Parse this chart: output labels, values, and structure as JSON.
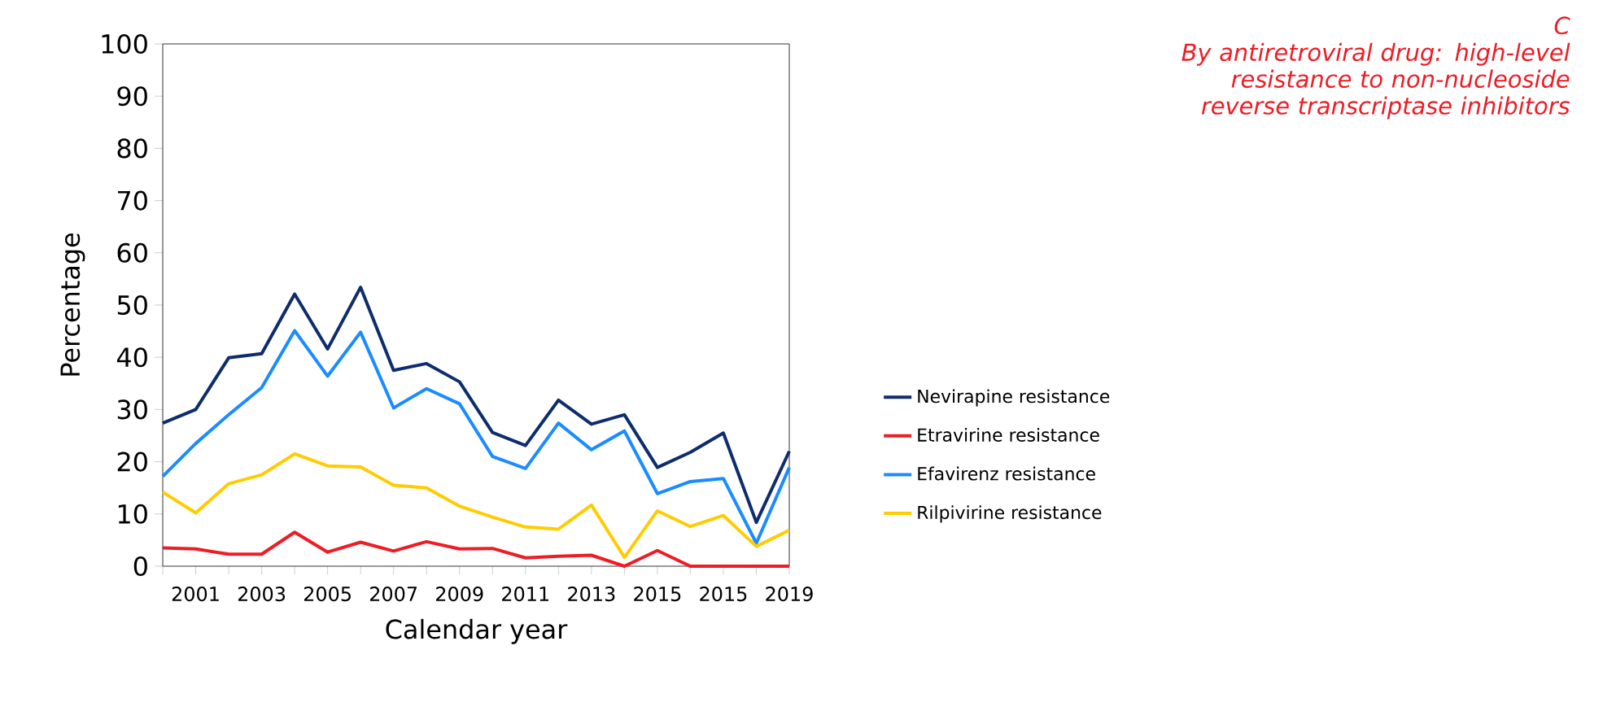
{
  "chart_data": {
    "type": "line",
    "title": "C",
    "subtitle": "By antiretroviral drug: high-level resistance to non-nucleoside reverse transcriptase inhibitors",
    "xlabel": "Calendar year",
    "ylabel": "Percentage",
    "categories": [
      null,
      "2001",
      null,
      "2003",
      null,
      "2005",
      null,
      "2007",
      null,
      "2009",
      null,
      "2011",
      null,
      "2013",
      null,
      "2015",
      null,
      "2015",
      null,
      "2019"
    ],
    "ylim": [
      0,
      100
    ],
    "yticks": [
      0,
      10,
      20,
      30,
      40,
      50,
      60,
      70,
      80,
      90,
      100
    ],
    "grid": false,
    "legend": "right",
    "marker": "none",
    "line_style": "solid",
    "series": [
      {
        "name": "Nevirapine resistance",
        "color": "#0d2d6c",
        "values": [
          27.4,
          30.0,
          39.9,
          40.7,
          52.1,
          41.6,
          53.4,
          37.5,
          38.8,
          35.3,
          25.6,
          23.1,
          31.8,
          27.2,
          29.0,
          18.9,
          21.8,
          25.5,
          8.4,
          22.0
        ]
      },
      {
        "name": "Etravirine resistance",
        "color": "#ee1c25",
        "values": [
          3.5,
          3.3,
          2.3,
          2.3,
          6.5,
          2.7,
          4.6,
          2.9,
          4.7,
          3.3,
          3.4,
          1.6,
          1.9,
          2.1,
          0,
          3.0,
          0,
          0,
          0,
          0
        ]
      },
      {
        "name": "Efavirenz resistance",
        "color": "#1a8cff",
        "values": [
          17.2,
          23.5,
          29.0,
          34.2,
          45.1,
          36.4,
          44.8,
          30.3,
          34.0,
          31.1,
          21.0,
          18.7,
          27.4,
          22.3,
          25.9,
          13.9,
          16.2,
          16.8,
          4.4,
          18.9
        ]
      },
      {
        "name": "Rilpivirine resistance",
        "color": "#ffcc00",
        "values": [
          14.2,
          10.2,
          15.8,
          17.5,
          21.5,
          19.2,
          19.0,
          15.5,
          15.0,
          11.5,
          9.4,
          7.5,
          7.1,
          11.7,
          1.7,
          10.6,
          7.6,
          9.7,
          3.8,
          6.9
        ]
      }
    ]
  }
}
